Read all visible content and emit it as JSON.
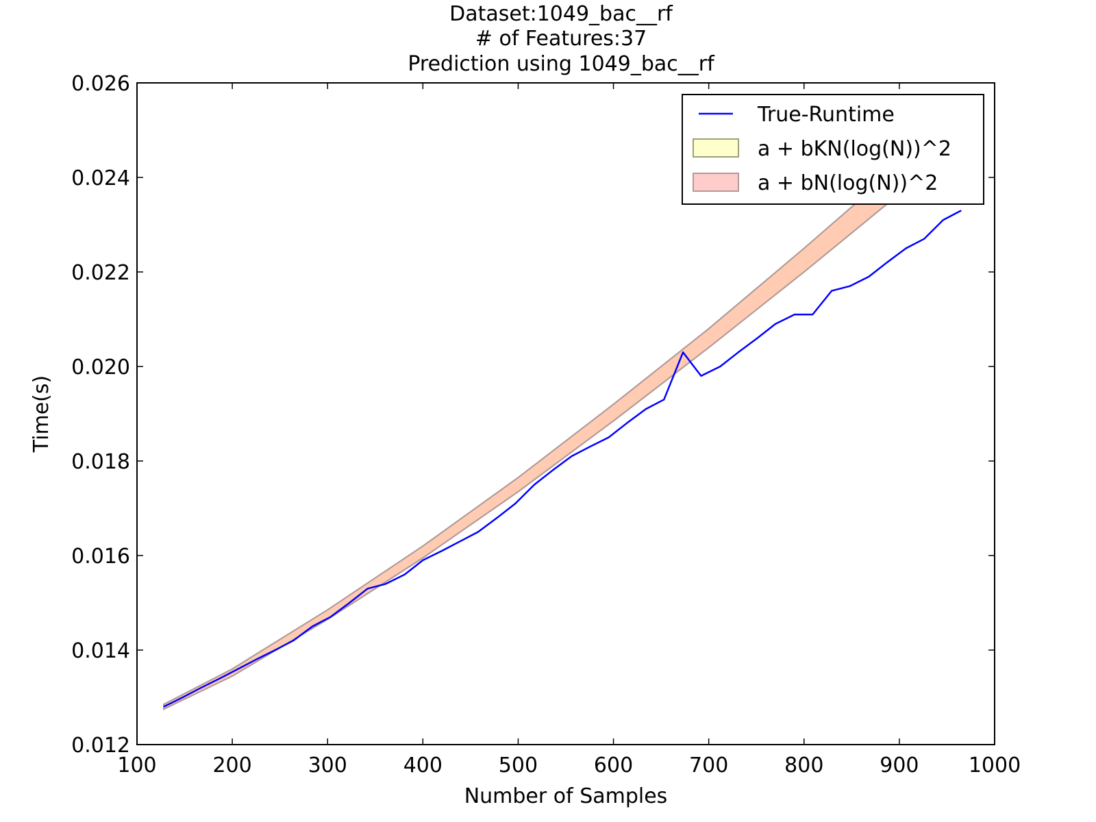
{
  "chart_data": {
    "type": "line",
    "title_lines": [
      "Dataset:1049_bac__rf",
      "# of Features:37",
      "Prediction using 1049_bac__rf"
    ],
    "xlabel": "Number of Samples",
    "ylabel": "Time(s)",
    "xlim": [
      100,
      1000
    ],
    "ylim": [
      0.012,
      0.026
    ],
    "x_ticks": [
      100,
      200,
      300,
      400,
      500,
      600,
      700,
      800,
      900,
      1000
    ],
    "x_tick_labels": [
      "100",
      "200",
      "300",
      "400",
      "500",
      "600",
      "700",
      "800",
      "900",
      "1000"
    ],
    "y_ticks": [
      0.012,
      0.014,
      0.016,
      0.018,
      0.02,
      0.022,
      0.024,
      0.026
    ],
    "y_tick_labels": [
      "0.012",
      "0.014",
      "0.016",
      "0.018",
      "0.020",
      "0.022",
      "0.024",
      "0.026"
    ],
    "grid": false,
    "legend_position": "top-right",
    "line_series": {
      "name": "True-Runtime",
      "color": "#0000ff",
      "x": [
        128,
        148,
        167,
        187,
        206,
        225,
        245,
        264,
        284,
        303,
        323,
        342,
        361,
        381,
        400,
        420,
        439,
        458,
        478,
        497,
        517,
        536,
        556,
        575,
        595,
        614,
        634,
        653,
        673,
        692,
        712,
        731,
        751,
        770,
        790,
        809,
        829,
        848,
        868,
        887,
        907,
        926,
        946,
        965
      ],
      "y": [
        0.0128,
        0.013,
        0.0132,
        0.0134,
        0.0136,
        0.0138,
        0.014,
        0.0142,
        0.0145,
        0.0147,
        0.015,
        0.0153,
        0.0154,
        0.0156,
        0.0159,
        0.0161,
        0.0163,
        0.0165,
        0.0168,
        0.0171,
        0.0175,
        0.0178,
        0.0181,
        0.0183,
        0.0185,
        0.0188,
        0.0191,
        0.0193,
        0.0203,
        0.0198,
        0.02,
        0.0203,
        0.0206,
        0.0209,
        0.0211,
        0.0211,
        0.0216,
        0.0217,
        0.0219,
        0.0222,
        0.0225,
        0.0227,
        0.0231,
        0.0233
      ]
    },
    "band_series": [
      {
        "name": "a + bKN(log(N))^2",
        "fill": "#ffff99",
        "edge": "#9e9e7a",
        "x": [
          128,
          200,
          300,
          400,
          500,
          600,
          700,
          800,
          900,
          965
        ],
        "lower": [
          0.01275,
          0.01345,
          0.01465,
          0.01595,
          0.01735,
          0.01885,
          0.0204,
          0.022,
          0.02365,
          0.02475
        ],
        "upper": [
          0.01285,
          0.0136,
          0.01485,
          0.0162,
          0.01765,
          0.0192,
          0.0208,
          0.0225,
          0.02425,
          0.02545
        ]
      },
      {
        "name": "a + bN(log(N))^2",
        "fill": "#ff9999",
        "edge": "#b09a9a",
        "x": [
          128,
          200,
          300,
          400,
          500,
          600,
          700,
          800,
          900,
          965
        ],
        "lower": [
          0.01275,
          0.01345,
          0.01465,
          0.01595,
          0.01735,
          0.01885,
          0.0204,
          0.022,
          0.02365,
          0.02475
        ],
        "upper": [
          0.01285,
          0.0136,
          0.01485,
          0.0162,
          0.01765,
          0.0192,
          0.0208,
          0.0225,
          0.02425,
          0.02545
        ]
      }
    ]
  }
}
